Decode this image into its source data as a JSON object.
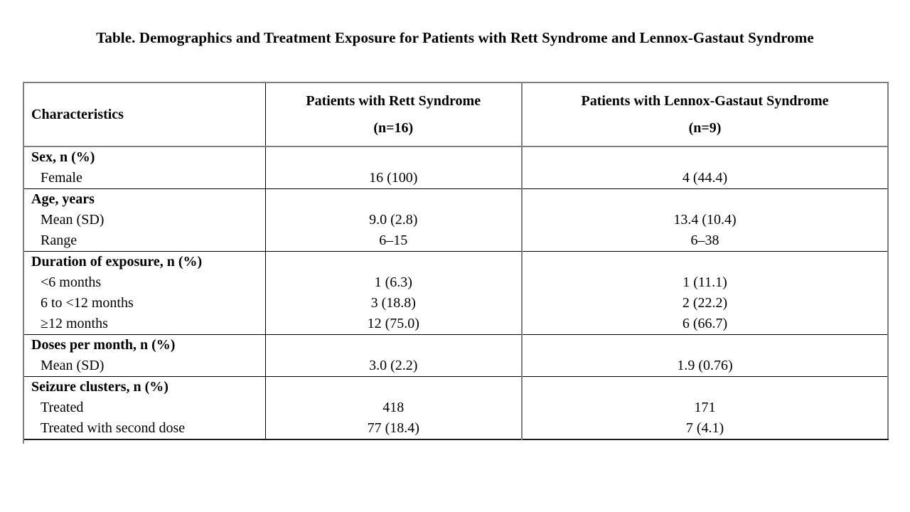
{
  "title": "Table. Demographics and Treatment Exposure for Patients with Rett Syndrome and Lennox-Gastaut Syndrome",
  "colors": {
    "frame_gray": "#7f7f7f",
    "section_line_black": "#000000",
    "bottom_border_dark": "#1a1a1a",
    "text": "#000000",
    "background": "#ffffff"
  },
  "table": {
    "columns": [
      {
        "label": "Characteristics",
        "sub": ""
      },
      {
        "label": "Patients with Rett Syndrome",
        "sub": "(n=16)"
      },
      {
        "label": "Patients with Lennox-Gastaut Syndrome",
        "sub": "(n=9)"
      }
    ],
    "sections": [
      {
        "header": "Sex, n (%)",
        "rows": [
          {
            "label": "Female",
            "rett": "16 (100)",
            "lgs": "4 (44.4)"
          }
        ]
      },
      {
        "header": "Age, years",
        "rows": [
          {
            "label": "Mean (SD)",
            "rett": "9.0 (2.8)",
            "lgs": "13.4 (10.4)"
          },
          {
            "label": "Range",
            "rett": "6–15",
            "lgs": "6–38"
          }
        ]
      },
      {
        "header": "Duration of exposure, n (%)",
        "rows": [
          {
            "label": "<6 months",
            "rett": "1 (6.3)",
            "lgs": "1 (11.1)"
          },
          {
            "label": "6 to <12 months",
            "rett": "3 (18.8)",
            "lgs": "2 (22.2)"
          },
          {
            "label": "≥12 months",
            "rett": "12 (75.0)",
            "lgs": "6 (66.7)"
          }
        ]
      },
      {
        "header": "Doses per month, n (%)",
        "rows": [
          {
            "label": "Mean (SD)",
            "rett": "3.0 (2.2)",
            "lgs": "1.9 (0.76)"
          }
        ]
      },
      {
        "header": "Seizure clusters, n (%)",
        "rows": [
          {
            "label": "Treated",
            "rett": "418",
            "lgs": "171"
          },
          {
            "label": "Treated with second dose",
            "rett": "77 (18.4)",
            "lgs": "7 (4.1)"
          }
        ]
      }
    ]
  }
}
